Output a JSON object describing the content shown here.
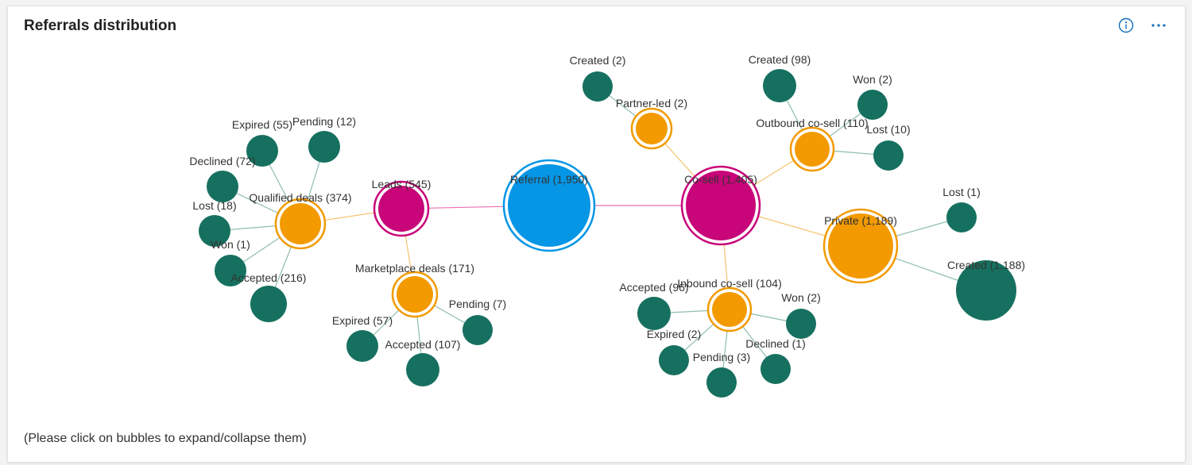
{
  "card": {
    "title": "Referrals distribution",
    "hint": "(Please click on bubbles to expand/collapse them)",
    "icons": [
      "info-icon",
      "more-options-icon"
    ]
  },
  "colors": {
    "root": "#0596e6",
    "category": "#c80679",
    "group": "#f29a00",
    "leaf": "#16705f",
    "link_pink": "#ee6fb0",
    "link_orange": "#f5c36e",
    "link_teal": "#8fbdb1",
    "accent": "#0f6cbd"
  },
  "graph": {
    "nodes": [
      {
        "id": "referral",
        "label": "Referral (1,950)",
        "type": "root"
      },
      {
        "id": "leads",
        "label": "Leads (545)",
        "type": "category"
      },
      {
        "id": "cosell",
        "label": "Co-sell (1,405)",
        "type": "category"
      },
      {
        "id": "qualified",
        "label": "Qualified deals (374)",
        "type": "group"
      },
      {
        "id": "marketplace",
        "label": "Marketplace deals (171)",
        "type": "group"
      },
      {
        "id": "partnerled",
        "label": "Partner-led (2)",
        "type": "group"
      },
      {
        "id": "outbound",
        "label": "Outbound co-sell (110)",
        "type": "group"
      },
      {
        "id": "private",
        "label": "Private (1,189)",
        "type": "group"
      },
      {
        "id": "inbound",
        "label": "Inbound co-sell (104)",
        "type": "group"
      },
      {
        "id": "q_expired",
        "label": "Expired (55)",
        "type": "leaf"
      },
      {
        "id": "q_pending",
        "label": "Pending (12)",
        "type": "leaf"
      },
      {
        "id": "q_declined",
        "label": "Declined (72)",
        "type": "leaf"
      },
      {
        "id": "q_lost",
        "label": "Lost (18)",
        "type": "leaf"
      },
      {
        "id": "q_won",
        "label": "Won (1)",
        "type": "leaf"
      },
      {
        "id": "q_accepted",
        "label": "Accepted (216)",
        "type": "leaf"
      },
      {
        "id": "m_expired",
        "label": "Expired (57)",
        "type": "leaf"
      },
      {
        "id": "m_accepted",
        "label": "Accepted (107)",
        "type": "leaf"
      },
      {
        "id": "m_pending",
        "label": "Pending (7)",
        "type": "leaf"
      },
      {
        "id": "p_created",
        "label": "Created (2)",
        "type": "leaf"
      },
      {
        "id": "o_created",
        "label": "Created (98)",
        "type": "leaf"
      },
      {
        "id": "o_won",
        "label": "Won (2)",
        "type": "leaf"
      },
      {
        "id": "o_lost",
        "label": "Lost (10)",
        "type": "leaf"
      },
      {
        "id": "pr_lost",
        "label": "Lost (1)",
        "type": "leaf"
      },
      {
        "id": "pr_created",
        "label": "Created (1,188)",
        "type": "leaf"
      },
      {
        "id": "i_accepted",
        "label": "Accepted (96)",
        "type": "leaf"
      },
      {
        "id": "i_won",
        "label": "Won (2)",
        "type": "leaf"
      },
      {
        "id": "i_expired",
        "label": "Expired (2)",
        "type": "leaf"
      },
      {
        "id": "i_declined",
        "label": "Declined (1)",
        "type": "leaf"
      },
      {
        "id": "i_pending",
        "label": "Pending (3)",
        "type": "leaf"
      }
    ],
    "links": [
      [
        "referral",
        "leads"
      ],
      [
        "referral",
        "cosell"
      ],
      [
        "leads",
        "qualified"
      ],
      [
        "leads",
        "marketplace"
      ],
      [
        "cosell",
        "partnerled"
      ],
      [
        "cosell",
        "outbound"
      ],
      [
        "cosell",
        "private"
      ],
      [
        "cosell",
        "inbound"
      ],
      [
        "qualified",
        "q_expired"
      ],
      [
        "qualified",
        "q_pending"
      ],
      [
        "qualified",
        "q_declined"
      ],
      [
        "qualified",
        "q_lost"
      ],
      [
        "qualified",
        "q_won"
      ],
      [
        "qualified",
        "q_accepted"
      ],
      [
        "marketplace",
        "m_expired"
      ],
      [
        "marketplace",
        "m_accepted"
      ],
      [
        "marketplace",
        "m_pending"
      ],
      [
        "partnerled",
        "p_created"
      ],
      [
        "outbound",
        "o_created"
      ],
      [
        "outbound",
        "o_won"
      ],
      [
        "outbound",
        "o_lost"
      ],
      [
        "private",
        "pr_lost"
      ],
      [
        "private",
        "pr_created"
      ],
      [
        "inbound",
        "i_accepted"
      ],
      [
        "inbound",
        "i_won"
      ],
      [
        "inbound",
        "i_expired"
      ],
      [
        "inbound",
        "i_declined"
      ],
      [
        "inbound",
        "i_pending"
      ]
    ]
  }
}
